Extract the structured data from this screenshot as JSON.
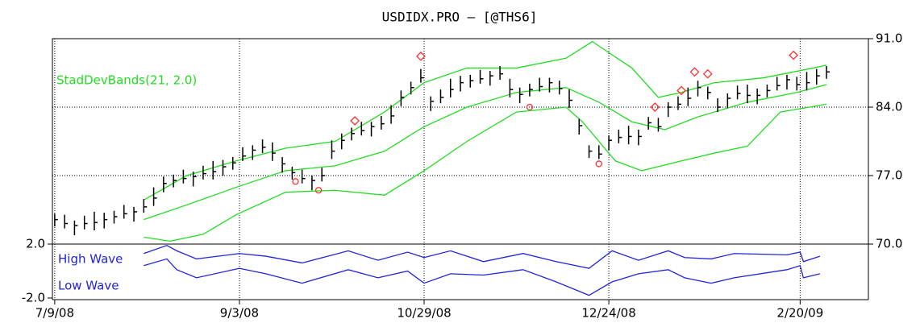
{
  "chart_data": [
    {
      "type": "hlc",
      "title": "USDIDX.PRO  –  [@THS6]",
      "color": "#000000",
      "ylim": [
        70,
        91
      ],
      "yticks": [
        {
          "value": 91,
          "label": "91.0"
        },
        {
          "value": 84,
          "label": "84.0"
        },
        {
          "value": 77,
          "label": "77.0"
        },
        {
          "value": 70,
          "label": "70.0"
        }
      ],
      "grid": true,
      "x": [
        0,
        3,
        6,
        9,
        12,
        15,
        18,
        21,
        24,
        27,
        30,
        33,
        36,
        39,
        42,
        45,
        48,
        51,
        54,
        57,
        60,
        63,
        66,
        69,
        72,
        75,
        78,
        81,
        84,
        87,
        90,
        93,
        96,
        99,
        102,
        105,
        108,
        111,
        114,
        117,
        120,
        123,
        126,
        129,
        132,
        135,
        138,
        141,
        144,
        147,
        150,
        153,
        156,
        159,
        162,
        165,
        168,
        171,
        174,
        177,
        180,
        183,
        186,
        189,
        192,
        195,
        198,
        201,
        204,
        207,
        210,
        213,
        216,
        219,
        222,
        225,
        228,
        231,
        234
      ],
      "high": [
        73.1,
        73.0,
        72.4,
        72.9,
        73.3,
        73.2,
        73.4,
        74.0,
        73.8,
        74.6,
        75.8,
        76.9,
        77.1,
        77.6,
        77.4,
        78.0,
        78.5,
        78.6,
        78.9,
        79.9,
        80.1,
        80.7,
        80.4,
        78.9,
        77.9,
        77.6,
        77.0,
        77.8,
        80.6,
        81.3,
        81.9,
        82.5,
        82.5,
        83.1,
        84.2,
        85.7,
        86.6,
        87.9,
        85.1,
        85.8,
        86.9,
        87.2,
        87.3,
        87.8,
        87.7,
        88.2,
        86.9,
        86.0,
        86.4,
        87.0,
        87.0,
        86.7,
        85.8,
        82.8,
        80.1,
        80.1,
        81.1,
        81.7,
        82.1,
        81.7,
        83.0,
        82.9,
        84.5,
        85.1,
        86.0,
        86.7,
        86.1,
        84.9,
        85.4,
        86.2,
        86.3,
        85.9,
        86.3,
        87.1,
        87.3,
        87.1,
        87.6,
        87.9,
        88.2
      ],
      "low": [
        71.8,
        71.6,
        70.9,
        71.5,
        71.4,
        71.6,
        72.1,
        72.6,
        72.3,
        73.2,
        73.9,
        75.3,
        75.8,
        76.2,
        75.9,
        76.6,
        76.6,
        77.0,
        77.6,
        78.5,
        78.6,
        79.3,
        78.5,
        77.3,
        76.6,
        76.2,
        75.5,
        76.4,
        78.7,
        79.7,
        80.6,
        81.1,
        81.0,
        81.7,
        82.3,
        84.1,
        85.3,
        86.5,
        83.6,
        84.4,
        85.0,
        85.6,
        86.0,
        86.4,
        86.2,
        86.8,
        85.0,
        84.4,
        85.1,
        85.6,
        85.5,
        85.3,
        83.9,
        81.2,
        78.8,
        78.7,
        79.6,
        80.3,
        80.2,
        80.1,
        81.7,
        81.5,
        83.0,
        83.7,
        84.1,
        85.1,
        84.8,
        83.5,
        83.9,
        84.8,
        84.4,
        84.3,
        85.0,
        85.7,
        85.8,
        85.7,
        85.7,
        86.3,
        86.9
      ],
      "close": [
        72.5,
        72.1,
        71.9,
        72.1,
        72.2,
        72.5,
        72.8,
        73.1,
        73.3,
        73.8,
        74.7,
        76.2,
        76.5,
        76.7,
        76.9,
        77.2,
        77.4,
        77.9,
        78.3,
        79.0,
        79.6,
        79.9,
        79.3,
        78.2,
        77.3,
        76.7,
        76.5,
        77.0,
        79.5,
        80.6,
        81.3,
        81.6,
        82.0,
        82.3,
        83.1,
        85.0,
        86.0,
        87.0,
        84.6,
        85.0,
        85.8,
        86.5,
        86.7,
        86.9,
        87.2,
        87.4,
        85.8,
        85.3,
        85.8,
        86.1,
        86.5,
        85.9,
        84.7,
        82.1,
        79.5,
        79.2,
        80.6,
        80.9,
        81.0,
        81.0,
        82.4,
        82.0,
        84.0,
        84.3,
        84.9,
        86.0,
        85.5,
        84.0,
        84.9,
        85.4,
        85.2,
        85.2,
        85.7,
        86.2,
        86.8,
        86.3,
        86.5,
        87.2,
        87.6
      ],
      "overlays": [
        {
          "name": "StadDevBands(21, 2.0)",
          "color": "#22dd22",
          "series": [
            {
              "x": [
                27,
                40,
                55,
                70,
                85,
                100,
                112,
                125,
                140,
                155,
                163,
                175,
                183,
                190,
                200,
                215,
                230,
                234
              ],
              "values": [
                74.5,
                77.0,
                78.5,
                79.8,
                80.5,
                83.5,
                86.5,
                88.0,
                88.0,
                89.0,
                90.7,
                88.0,
                85.0,
                85.5,
                86.5,
                87.0,
                88.0,
                88.3
              ]
            },
            {
              "x": [
                27,
                40,
                55,
                70,
                85,
                100,
                112,
                125,
                140,
                155,
                165,
                175,
                185,
                195,
                210,
                225,
                234
              ],
              "values": [
                72.5,
                74.0,
                75.8,
                77.5,
                78.0,
                79.5,
                82.0,
                84.0,
                85.5,
                86.0,
                84.5,
                82.5,
                81.7,
                83.0,
                84.5,
                85.5,
                86.3
              ]
            },
            {
              "x": [
                27,
                35,
                45,
                55,
                70,
                85,
                100,
                112,
                125,
                140,
                155,
                160,
                170,
                178,
                190,
                200,
                210,
                220,
                234
              ],
              "values": [
                70.7,
                70.3,
                71.0,
                73.0,
                75.3,
                75.5,
                75.0,
                77.5,
                80.5,
                83.5,
                84.0,
                82.5,
                78.5,
                77.5,
                78.5,
                79.3,
                80.0,
                83.5,
                84.3
              ]
            }
          ]
        }
      ],
      "markers": [
        {
          "shape": "diamond",
          "color": "#ff3030",
          "x": [
            91,
            111,
            182,
            190,
            194,
            198,
            224
          ],
          "values": [
            82.6,
            89.2,
            84.0,
            85.7,
            87.6,
            87.4,
            89.3
          ]
        },
        {
          "shape": "circle",
          "color": "#ff3030",
          "x": [
            73,
            80,
            144,
            165
          ],
          "values": [
            76.4,
            75.5,
            84.0,
            78.2
          ]
        }
      ]
    },
    {
      "type": "line",
      "xlim": [
        -0.7,
        246.7
      ],
      "xticks": [
        {
          "value": 0,
          "label": "7/9/08"
        },
        {
          "value": 56,
          "label": "9/3/08"
        },
        {
          "value": 112,
          "label": "10/29/08"
        },
        {
          "value": 168,
          "label": "12/24/08"
        },
        {
          "value": 226,
          "label": "2/20/09"
        }
      ],
      "ylim": [
        -2,
        2
      ],
      "yticks": [
        {
          "value": 2,
          "label": "2.0"
        },
        {
          "value": -2,
          "label": "-2.0"
        }
      ],
      "x": [
        27,
        34,
        37,
        43,
        56,
        64,
        75,
        89,
        98,
        107,
        112,
        120,
        130,
        142,
        152,
        162,
        169,
        177,
        186,
        191,
        199,
        206,
        222,
        226,
        227,
        232
      ],
      "series": [
        {
          "name": "High Wave",
          "color": "#2222dd",
          "values": [
            1.3,
            1.9,
            1.5,
            0.9,
            1.3,
            1.1,
            0.6,
            1.5,
            0.8,
            1.4,
            1.0,
            1.5,
            0.7,
            1.3,
            0.7,
            0.2,
            1.5,
            0.8,
            1.5,
            1.0,
            0.9,
            1.3,
            1.2,
            1.4,
            0.7,
            1.1
          ]
        },
        {
          "name": "Low Wave",
          "color": "#2222dd",
          "values": [
            0.4,
            0.9,
            0.1,
            -0.5,
            0.2,
            -0.2,
            -0.9,
            0.1,
            -0.5,
            0.0,
            -0.9,
            -0.2,
            -0.3,
            0.1,
            -0.8,
            -1.8,
            -0.8,
            -0.2,
            0.1,
            -0.5,
            -0.9,
            -0.5,
            0.1,
            0.4,
            -0.5,
            -0.2
          ]
        }
      ]
    }
  ]
}
